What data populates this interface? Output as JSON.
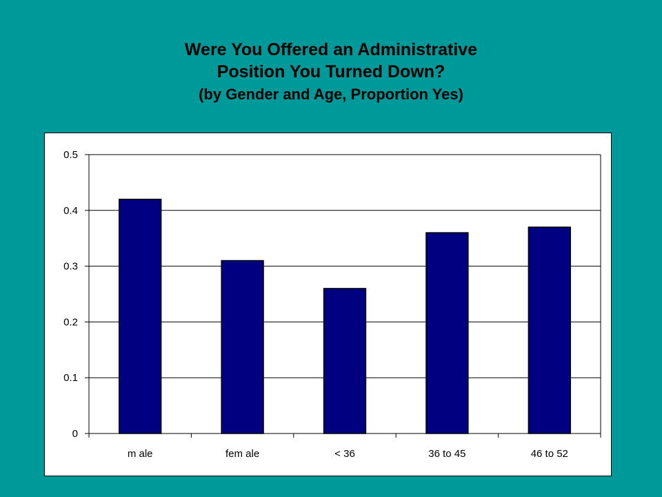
{
  "title": {
    "line1": "Were You Offered an Administrative",
    "line2": "Position You Turned Down?",
    "line3": "(by Gender and Age, Proportion Yes)"
  },
  "colors": {
    "background": "#009999",
    "bar_fill": "#000080",
    "plot_background": "#ffffff"
  },
  "chart_data": {
    "type": "bar",
    "title": "Were You Offered an Administrative Position You Turned Down? (by Gender and Age, Proportion Yes)",
    "categories": [
      "m ale",
      "fem ale",
      "< 36",
      "36 to 45",
      "46 to 52"
    ],
    "series": [
      {
        "values": [
          0.42,
          0.31,
          0.26,
          0.36,
          0.37
        ]
      }
    ],
    "xlabel": "",
    "ylabel": "",
    "ylim": [
      0,
      0.5
    ],
    "yticks": [
      0,
      0.1,
      0.2,
      0.3,
      0.4,
      0.5
    ],
    "ytick_labels": [
      "0",
      "0.1",
      "0.2",
      "0.3",
      "0.4",
      "0.5"
    ],
    "grid": true,
    "legend": "none"
  }
}
